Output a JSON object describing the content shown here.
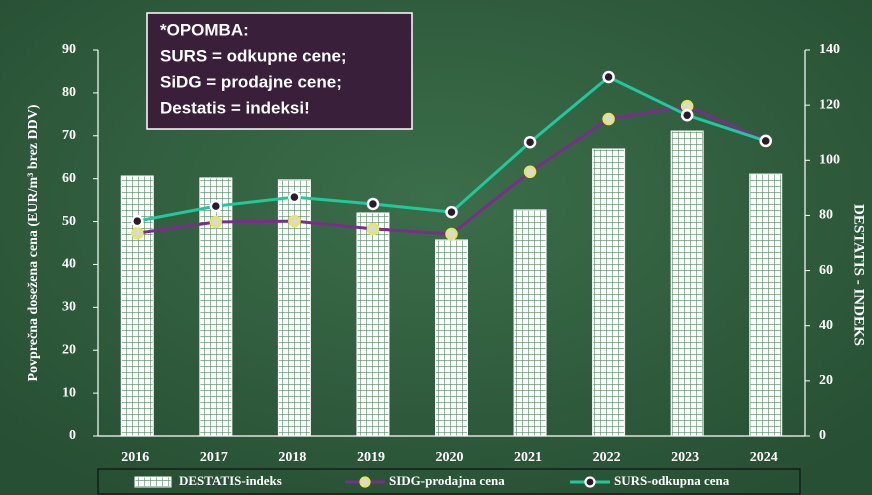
{
  "chart_data": {
    "type": "bar-line",
    "note": [
      "*OPOMBA:",
      "SURS = odkupne cene;",
      "SiDG = prodajne cene;",
      "Destatis = indeksi!"
    ],
    "ylabel": "Povprečna dosežena cena (EUR/m³ brez DDV)",
    "y2label": "DESTATIS - INDEKS",
    "categories": [
      "2016",
      "2017",
      "2018",
      "2019",
      "2020",
      "2021",
      "2022",
      "2023",
      "2024"
    ],
    "series": [
      {
        "name": "DESTATIS-indeks",
        "type": "bar",
        "axis": "y2",
        "color": "#ffffff",
        "values": [
          94.3,
          93.6,
          92.9,
          80.9,
          71.1,
          82,
          104.1,
          110.6,
          95
        ]
      },
      {
        "name": "SIDG-prodajna cena",
        "type": "line",
        "color": "#7b2d8b",
        "marker_color": "#e4e85a",
        "values": [
          47.3,
          49.9,
          50.1,
          48.3,
          47.1,
          61.6,
          73.9,
          76.9,
          68.8
        ]
      },
      {
        "name": "SURS-odkupna cena",
        "type": "line",
        "color": "#1fc99a",
        "marker_color": "#ffffff",
        "values": [
          50.1,
          53.6,
          55.7,
          54.1,
          52.2,
          68.5,
          83.7,
          74.8,
          68.8
        ]
      }
    ],
    "ylim": [
      0,
      90
    ],
    "yticks": [
      0,
      10,
      20,
      30,
      40,
      50,
      60,
      70,
      80,
      90
    ],
    "y2lim": [
      0,
      140
    ],
    "y2ticks": [
      0,
      20,
      40,
      60,
      80,
      100,
      120,
      140
    ]
  }
}
